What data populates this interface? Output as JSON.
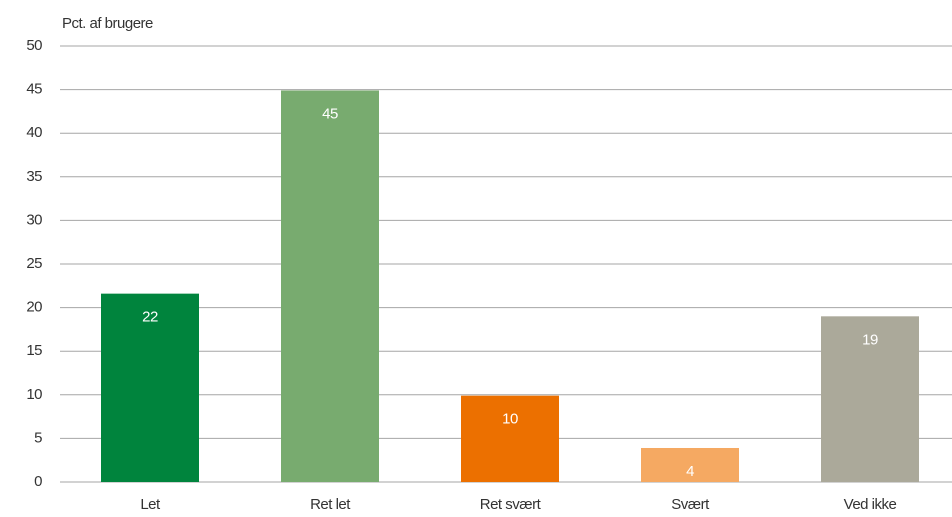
{
  "chart_data": {
    "type": "bar",
    "y_label": "Pct. af brugere",
    "categories": [
      "Let",
      "Ret let",
      "Ret svært",
      "Svært",
      "Ved ikke"
    ],
    "values": [
      21.6,
      44.9,
      9.9,
      3.9,
      19
    ],
    "value_labels": [
      "22",
      "45",
      "10",
      "4",
      "19"
    ],
    "colors": [
      "#00843d",
      "#78ab6f",
      "#ec7000",
      "#f5a962",
      "#aba99a"
    ],
    "ylim": [
      0,
      50
    ],
    "yticks": [
      0,
      5,
      10,
      15,
      20,
      25,
      30,
      35,
      40,
      45,
      50
    ],
    "grid": true
  }
}
